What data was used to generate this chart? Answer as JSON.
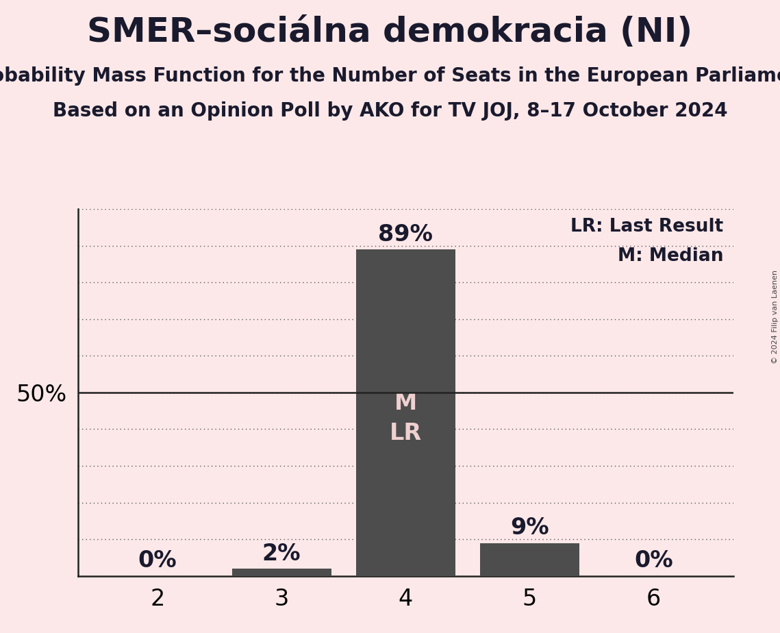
{
  "title": "SMER–sociálna demokracia (NI)",
  "subtitle1": "Probability Mass Function for the Number of Seats in the European Parliament",
  "subtitle2": "Based on an Opinion Poll by AKO for TV JOJ, 8–17 October 2024",
  "copyright": "© 2024 Filip van Laenen",
  "seats": [
    2,
    3,
    4,
    5,
    6
  ],
  "probabilities": [
    0.0,
    0.02,
    0.89,
    0.09,
    0.0
  ],
  "bar_color": "#4d4d4d",
  "background_color": "#fce8e8",
  "median_seat": 4,
  "last_result_seat": 4,
  "legend_lr": "LR: Last Result",
  "legend_m": "M: Median",
  "bar_label_color_inside": "#f0d0d0",
  "bar_label_color_outside": "#1a1a2e",
  "ylabel_fontsize": 24,
  "xlabel_fontsize": 24,
  "title_fontsize": 36,
  "subtitle_fontsize": 20,
  "annotation_fontsize": 24,
  "legend_fontsize": 19,
  "mlr_fontsize": 24,
  "ylim_max": 1.0,
  "grid_color": "#555555",
  "spine_color": "#222222",
  "text_color": "#1a1a2e"
}
